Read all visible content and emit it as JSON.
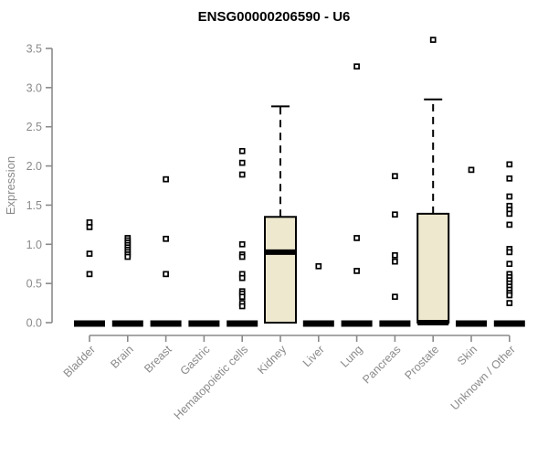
{
  "chart_data": {
    "type": "boxplot",
    "title": "ENSG00000206590 - U6",
    "ylabel": "Expression",
    "xlabel": "",
    "ylim": [
      0.0,
      3.5
    ],
    "ytick_step": 0.5,
    "yticks": [
      "0.0",
      "0.5",
      "1.0",
      "1.5",
      "2.0",
      "2.5",
      "3.0",
      "3.5"
    ],
    "grid": false,
    "legend": "none",
    "categories": [
      "Bladder",
      "Brain",
      "Breast",
      "Gastric",
      "Hematopoietic cells",
      "Kidney",
      "Liver",
      "Lung",
      "Pancreas",
      "Prostate",
      "Skin",
      "Unknown / Other"
    ],
    "boxes": [
      {
        "category": "Bladder",
        "lower_whisker": 0,
        "q1": 0,
        "median": 0,
        "q3": 0,
        "upper_whisker": 0,
        "outliers": [
          1.28,
          1.22,
          0.88,
          0.62
        ]
      },
      {
        "category": "Brain",
        "lower_whisker": 0,
        "q1": 0,
        "median": 0,
        "q3": 0,
        "upper_whisker": 0,
        "outliers": [
          1.08,
          1.05,
          1.02,
          0.99,
          0.96,
          0.93,
          0.9,
          0.87,
          0.84
        ]
      },
      {
        "category": "Breast",
        "lower_whisker": 0,
        "q1": 0,
        "median": 0,
        "q3": 0,
        "upper_whisker": 0,
        "outliers": [
          1.83,
          1.07,
          0.62
        ]
      },
      {
        "category": "Gastric",
        "lower_whisker": 0,
        "q1": 0,
        "median": 0,
        "q3": 0,
        "upper_whisker": 0,
        "outliers": []
      },
      {
        "category": "Hematopoietic cells",
        "lower_whisker": 0,
        "q1": 0,
        "median": 0,
        "q3": 0,
        "upper_whisker": 0,
        "outliers": [
          2.19,
          2.04,
          1.89,
          1.0,
          0.87,
          0.84,
          0.62,
          0.57,
          0.4,
          0.37,
          0.33,
          0.25,
          0.21
        ]
      },
      {
        "category": "Kidney",
        "lower_whisker": 0,
        "q1": 0,
        "median": 0.9,
        "q3": 1.35,
        "upper_whisker": 2.76,
        "outliers": []
      },
      {
        "category": "Liver",
        "lower_whisker": 0,
        "q1": 0,
        "median": 0,
        "q3": 0,
        "upper_whisker": 0,
        "outliers": [
          0.72
        ]
      },
      {
        "category": "Lung",
        "lower_whisker": 0,
        "q1": 0,
        "median": 0,
        "q3": 0,
        "upper_whisker": 0,
        "outliers": [
          3.27,
          1.08,
          0.66
        ]
      },
      {
        "category": "Pancreas",
        "lower_whisker": 0,
        "q1": 0,
        "median": 0,
        "q3": 0,
        "upper_whisker": 0,
        "outliers": [
          1.87,
          1.38,
          0.86,
          0.78,
          0.33
        ]
      },
      {
        "category": "Prostate",
        "lower_whisker": 0,
        "q1": 0,
        "median": 0,
        "q3": 1.39,
        "upper_whisker": 2.85,
        "outliers": [
          3.61
        ]
      },
      {
        "category": "Skin",
        "lower_whisker": 0,
        "q1": 0,
        "median": 0,
        "q3": 0,
        "upper_whisker": 0,
        "outliers": [
          1.95
        ]
      },
      {
        "category": "Unknown / Other",
        "lower_whisker": 0,
        "q1": 0,
        "median": 0,
        "q3": 0,
        "upper_whisker": 0,
        "outliers": [
          2.02,
          1.84,
          1.61,
          1.49,
          1.44,
          1.39,
          1.25,
          0.94,
          0.9,
          0.75,
          0.62,
          0.58,
          0.54,
          0.5,
          0.46,
          0.42,
          0.38,
          0.35,
          0.25
        ]
      }
    ],
    "colors": {
      "background": "#FFFFFF",
      "title": "#000000",
      "axis": "#8A8A8A",
      "tick_label": "#8A8A8A",
      "box_fill": "#EDE8CE",
      "box_stroke": "#000000",
      "median": "#000000",
      "whisker": "#000000",
      "outlier_stroke": "#000000",
      "outlier_fill": "#FFFFFF"
    }
  }
}
